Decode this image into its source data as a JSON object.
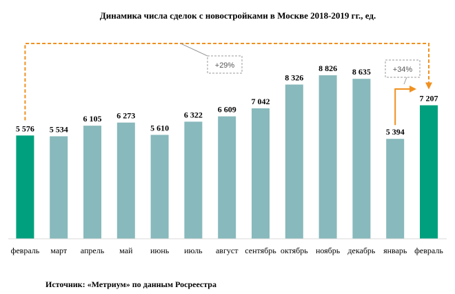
{
  "chart_data": {
    "type": "bar",
    "title": "Динамика числа сделок с новостройками в Москве 2018-2019 гг., ед.",
    "categories": [
      "февраль",
      "март",
      "апрель",
      "май",
      "июнь",
      "июль",
      "август",
      "сентябрь",
      "октябрь",
      "ноябрь",
      "декабрь",
      "январь",
      "февраль"
    ],
    "values": [
      5576,
      5534,
      6105,
      6273,
      5610,
      6322,
      6609,
      7042,
      8326,
      8826,
      8635,
      5394,
      7207
    ],
    "value_labels": [
      "5 576",
      "5 534",
      "6 105",
      "6 273",
      "5 610",
      "6 322",
      "6 609",
      "7 042",
      "8 326",
      "8 826",
      "8 635",
      "5 394",
      "7 207"
    ],
    "highlight_indices": [
      0,
      12
    ],
    "ylim": [
      0,
      9500
    ],
    "grid": false,
    "xlabel": "",
    "ylabel": "",
    "annotations": [
      {
        "text": "+29%",
        "from": 0,
        "to": 12
      },
      {
        "text": "+34%",
        "from": 11,
        "to": 12
      }
    ]
  },
  "colors": {
    "bar": "#88b9bc",
    "highlight": "#00a07e",
    "arrow": "#f0901e",
    "annotation_border": "#9a9a9a"
  },
  "source": "Источник: «Метриум» по данным Росреестра"
}
